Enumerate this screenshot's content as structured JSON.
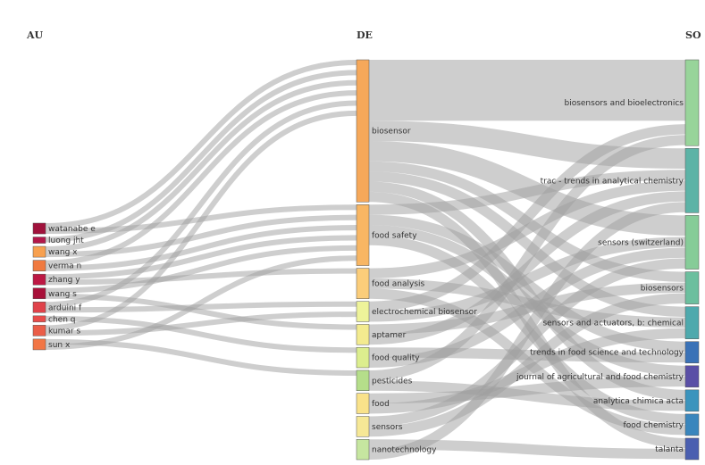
{
  "columns": {
    "au": "AU",
    "de": "DE",
    "so": "SO"
  },
  "chart_data": {
    "type": "sankey",
    "nodes": {
      "AU": [
        {
          "id": "au-watanabe-e",
          "label": "watanabe e",
          "color": "#a0123c"
        },
        {
          "id": "au-luong-jht",
          "label": "luong jht",
          "color": "#b3174a"
        },
        {
          "id": "au-wang-x",
          "label": "wang x",
          "color": "#f7a04f"
        },
        {
          "id": "au-verma-n",
          "label": "verma n",
          "color": "#f07a40"
        },
        {
          "id": "au-zhang-y",
          "label": "zhang y",
          "color": "#bd1844"
        },
        {
          "id": "au-wang-s",
          "label": "wang s",
          "color": "#a8103a"
        },
        {
          "id": "au-arduini-f",
          "label": "arduini f",
          "color": "#e0424a"
        },
        {
          "id": "au-chen-q",
          "label": "chen q",
          "color": "#e84c4a"
        },
        {
          "id": "au-kumar-s",
          "label": "kumar s",
          "color": "#ea5d48"
        },
        {
          "id": "au-sun-x",
          "label": "sun x",
          "color": "#f27645"
        }
      ],
      "DE": [
        {
          "id": "de-biosensor",
          "label": "biosensor",
          "color": "#f6a85a"
        },
        {
          "id": "de-food-safety",
          "label": "food safety",
          "color": "#f8b663"
        },
        {
          "id": "de-food-analysis",
          "label": "food analysis",
          "color": "#fbcd7a"
        },
        {
          "id": "de-electrochemical-biosensor",
          "label": "electrochemical biosensor",
          "color": "#eef39a"
        },
        {
          "id": "de-aptamer",
          "label": "aptamer",
          "color": "#f3eb8f"
        },
        {
          "id": "de-food-quality",
          "label": "food quality",
          "color": "#dcee8e"
        },
        {
          "id": "de-pesticides",
          "label": "pesticides",
          "color": "#b5de8a"
        },
        {
          "id": "de-food",
          "label": "food",
          "color": "#f9e28a"
        },
        {
          "id": "de-sensors",
          "label": "sensors",
          "color": "#f6e896"
        },
        {
          "id": "de-nanotechnology",
          "label": "nanotechnology",
          "color": "#c6e6a0"
        }
      ],
      "SO": [
        {
          "id": "so-biosensors-and-bioelectronics",
          "label": "biosensors and bioelectronics",
          "color": "#98d49a"
        },
        {
          "id": "so-trac",
          "label": "trac - trends in analytical chemistry",
          "color": "#5cb3a6"
        },
        {
          "id": "so-sensors-switzerland",
          "label": "sensors (switzerland)",
          "color": "#86cc98"
        },
        {
          "id": "so-biosensors",
          "label": "biosensors",
          "color": "#6cbf9e"
        },
        {
          "id": "so-sensors-and-actuators",
          "label": "sensors and actuators, b: chemical",
          "color": "#4ea9ad"
        },
        {
          "id": "so-trends-in-food-science",
          "label": "trends in food science and technology",
          "color": "#3a72b7"
        },
        {
          "id": "so-journal-agri-food-chem",
          "label": "journal of agricultural and food chemistry",
          "color": "#5a4fa6"
        },
        {
          "id": "so-analytica-chimica-acta",
          "label": "analytica chimica acta",
          "color": "#3b94bd"
        },
        {
          "id": "so-food-chemistry",
          "label": "food chemistry",
          "color": "#3a86bd"
        },
        {
          "id": "so-talanta",
          "label": "talanta",
          "color": "#4a5fb0"
        }
      ]
    },
    "links_au_de": [
      {
        "source": "au-watanabe-e",
        "target": "de-biosensor",
        "value": 1
      },
      {
        "source": "au-watanabe-e",
        "target": "de-food-safety",
        "value": 1
      },
      {
        "source": "au-luong-jht",
        "target": "de-biosensor",
        "value": 1
      },
      {
        "source": "au-wang-x",
        "target": "de-biosensor",
        "value": 1
      },
      {
        "source": "au-wang-x",
        "target": "de-food-safety",
        "value": 1
      },
      {
        "source": "au-verma-n",
        "target": "de-biosensor",
        "value": 1
      },
      {
        "source": "au-verma-n",
        "target": "de-food-safety",
        "value": 1
      },
      {
        "source": "au-zhang-y",
        "target": "de-food-safety",
        "value": 1
      },
      {
        "source": "au-zhang-y",
        "target": "de-food-analysis",
        "value": 1
      },
      {
        "source": "au-wang-s",
        "target": "de-food-safety",
        "value": 1
      },
      {
        "source": "au-wang-s",
        "target": "de-aptamer",
        "value": 1
      },
      {
        "source": "au-arduini-f",
        "target": "de-biosensor",
        "value": 1
      },
      {
        "source": "au-arduini-f",
        "target": "de-electrochemical-biosensor",
        "value": 1
      },
      {
        "source": "au-chen-q",
        "target": "de-food-quality",
        "value": 1
      },
      {
        "source": "au-kumar-s",
        "target": "de-biosensor",
        "value": 1
      },
      {
        "source": "au-kumar-s",
        "target": "de-electrochemical-biosensor",
        "value": 1
      },
      {
        "source": "au-sun-x",
        "target": "de-pesticides",
        "value": 1
      },
      {
        "source": "au-sun-x",
        "target": "de-food-safety",
        "value": 1
      }
    ],
    "links_de_so": [
      {
        "source": "de-biosensor",
        "target": "so-biosensors-and-bioelectronics",
        "value": 6
      },
      {
        "source": "de-biosensor",
        "target": "so-trac",
        "value": 2
      },
      {
        "source": "de-biosensor",
        "target": "so-sensors-switzerland",
        "value": 2
      },
      {
        "source": "de-biosensor",
        "target": "so-biosensors",
        "value": 1
      },
      {
        "source": "de-biosensor",
        "target": "so-sensors-and-actuators",
        "value": 1
      },
      {
        "source": "de-biosensor",
        "target": "so-analytica-chimica-acta",
        "value": 1
      },
      {
        "source": "de-biosensor",
        "target": "so-talanta",
        "value": 1
      },
      {
        "source": "de-food-safety",
        "target": "so-trac",
        "value": 1
      },
      {
        "source": "de-food-safety",
        "target": "so-trends-in-food-science",
        "value": 1
      },
      {
        "source": "de-food-safety",
        "target": "so-journal-agri-food-chem",
        "value": 1
      },
      {
        "source": "de-food-safety",
        "target": "so-food-chemistry",
        "value": 1
      },
      {
        "source": "de-food-analysis",
        "target": "so-trac",
        "value": 1
      },
      {
        "source": "de-food-analysis",
        "target": "so-sensors-and-actuators",
        "value": 1
      },
      {
        "source": "de-food-analysis",
        "target": "so-food-chemistry",
        "value": 1
      },
      {
        "source": "de-electrochemical-biosensor",
        "target": "so-biosensors-and-bioelectronics",
        "value": 1
      },
      {
        "source": "de-electrochemical-biosensor",
        "target": "so-sensors-switzerland",
        "value": 1
      },
      {
        "source": "de-aptamer",
        "target": "so-biosensors",
        "value": 1
      },
      {
        "source": "de-aptamer",
        "target": "so-trac",
        "value": 1
      },
      {
        "source": "de-food-quality",
        "target": "so-trends-in-food-science",
        "value": 1
      },
      {
        "source": "de-food-quality",
        "target": "so-sensors-switzerland",
        "value": 1
      },
      {
        "source": "de-pesticides",
        "target": "so-biosensors-and-bioelectronics",
        "value": 1
      },
      {
        "source": "de-pesticides",
        "target": "so-analytica-chimica-acta",
        "value": 1
      },
      {
        "source": "de-food",
        "target": "so-journal-agri-food-chem",
        "value": 1
      },
      {
        "source": "de-food",
        "target": "so-sensors-and-actuators",
        "value": 1
      },
      {
        "source": "de-sensors",
        "target": "so-sensors-switzerland",
        "value": 1
      },
      {
        "source": "de-sensors",
        "target": "so-biosensors",
        "value": 1
      },
      {
        "source": "de-nanotechnology",
        "target": "so-talanta",
        "value": 1
      },
      {
        "source": "de-nanotechnology",
        "target": "so-trac",
        "value": 1
      }
    ]
  }
}
